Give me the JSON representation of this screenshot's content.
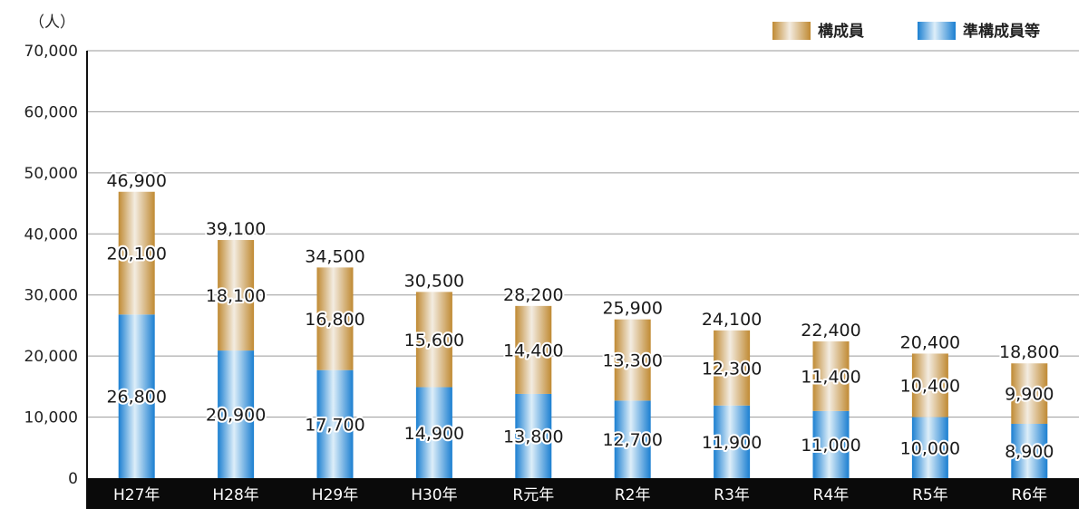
{
  "chart_data": {
    "type": "bar",
    "stacked": true,
    "unit_label": "（人）",
    "categories": [
      "H27年",
      "H28年",
      "H29年",
      "H30年",
      "R元年",
      "R2年",
      "R3年",
      "R4年",
      "R5年",
      "R6年"
    ],
    "series": [
      {
        "name": "準構成員等",
        "values": [
          26800,
          20900,
          17700,
          14900,
          13800,
          12700,
          11900,
          11000,
          10000,
          8900
        ],
        "color": "#2f8fd8"
      },
      {
        "name": "構成員",
        "values": [
          20100,
          18100,
          16800,
          15600,
          14400,
          13300,
          12300,
          11400,
          10400,
          9900
        ],
        "color": "#c99a45"
      }
    ],
    "total_labels": [
      "46,900",
      "39,100",
      "34,500",
      "30,500",
      "28,200",
      "25,900",
      "24,100",
      "22,400",
      "20,400",
      "18,800"
    ],
    "ylim": [
      0,
      70000
    ],
    "yticks": [
      "0",
      "10,000",
      "20,000",
      "30,000",
      "40,000",
      "50,000",
      "60,000",
      "70,000"
    ],
    "grid": true,
    "legend": {
      "position": "top-right",
      "entries": [
        "構成員",
        "準構成員等"
      ]
    }
  }
}
